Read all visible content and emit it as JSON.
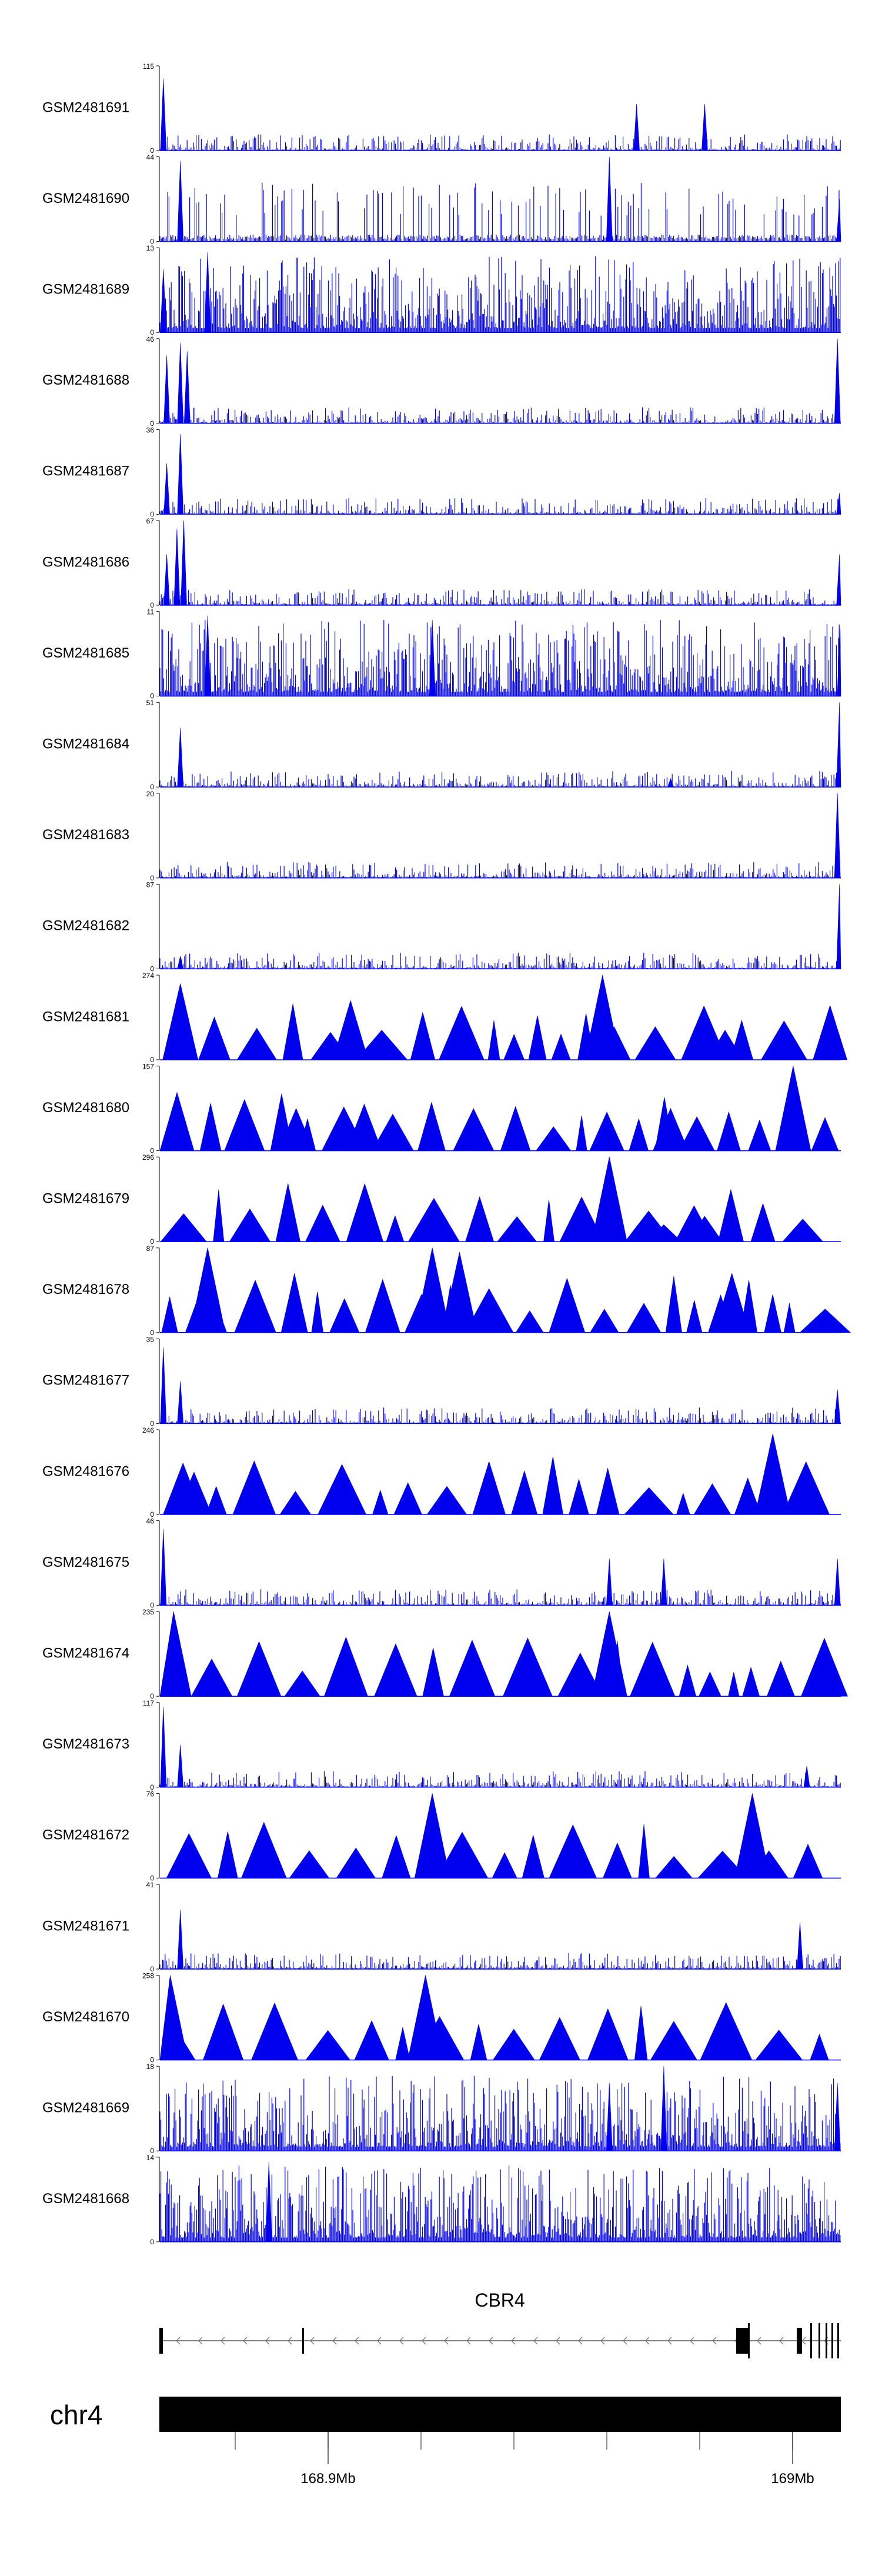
{
  "chart_data": {
    "type": "area",
    "title": "",
    "xlabel": "",
    "ylabel": "",
    "signal_color": "#0000ee",
    "tracks": [
      {
        "name": "GSM2481691",
        "ymax": "115",
        "profile": "sparse",
        "peaks": [
          [
            0.005,
            0.85
          ],
          [
            0.7,
            0.55
          ],
          [
            0.8,
            0.55
          ]
        ]
      },
      {
        "name": "GSM2481690",
        "ymax": "44",
        "profile": "comb",
        "peaks": [
          [
            0.03,
            0.95
          ],
          [
            0.66,
            1.0
          ],
          [
            0.998,
            0.5
          ]
        ]
      },
      {
        "name": "GSM2481689",
        "ymax": "13",
        "profile": "dense",
        "peaks": [
          [
            0.07,
            0.95
          ],
          [
            0.005,
            0.75
          ]
        ]
      },
      {
        "name": "GSM2481688",
        "ymax": "46",
        "profile": "edge",
        "peaks": [
          [
            0.01,
            0.8
          ],
          [
            0.03,
            0.95
          ],
          [
            0.04,
            0.85
          ],
          [
            0.995,
            1.0
          ]
        ]
      },
      {
        "name": "GSM2481687",
        "ymax": "36",
        "profile": "sparse",
        "peaks": [
          [
            0.01,
            0.6
          ],
          [
            0.03,
            0.95
          ],
          [
            0.998,
            0.25
          ]
        ]
      },
      {
        "name": "GSM2481686",
        "ymax": "67",
        "profile": "edge",
        "peaks": [
          [
            0.01,
            0.6
          ],
          [
            0.025,
            0.9
          ],
          [
            0.035,
            1.0
          ],
          [
            0.998,
            0.6
          ]
        ]
      },
      {
        "name": "GSM2481685",
        "ymax": "11",
        "profile": "dense",
        "peaks": [
          [
            0.07,
            0.95
          ],
          [
            0.4,
            0.9
          ],
          [
            0.999,
            0.8
          ]
        ]
      },
      {
        "name": "GSM2481684",
        "ymax": "51",
        "profile": "edge",
        "peaks": [
          [
            0.03,
            0.7
          ],
          [
            0.75,
            0.1
          ],
          [
            0.998,
            1.0
          ]
        ]
      },
      {
        "name": "GSM2481683",
        "ymax": "20",
        "profile": "sparse",
        "peaks": [
          [
            0.995,
            1.0
          ]
        ]
      },
      {
        "name": "GSM2481682",
        "ymax": "87",
        "profile": "edge",
        "peaks": [
          [
            0.03,
            0.15
          ],
          [
            0.998,
            1.0
          ]
        ]
      },
      {
        "name": "GSM2481681",
        "ymax": "274",
        "profile": "triangles",
        "peaks": [
          [
            0.03,
            0.9
          ],
          [
            0.28,
            0.7
          ],
          [
            0.65,
            1.0
          ],
          [
            0.83,
            0.35
          ]
        ]
      },
      {
        "name": "GSM2481680",
        "ymax": "157",
        "profile": "triangles",
        "peaks": [
          [
            0.2,
            0.5
          ],
          [
            0.3,
            0.55
          ],
          [
            0.75,
            0.5
          ],
          [
            0.93,
            1.0
          ]
        ]
      },
      {
        "name": "GSM2481679",
        "ymax": "296",
        "profile": "triangles",
        "peaks": [
          [
            0.66,
            1.0
          ],
          [
            0.74,
            0.2
          ],
          [
            0.8,
            0.3
          ]
        ]
      },
      {
        "name": "GSM2481678",
        "ymax": "87",
        "profile": "triangles",
        "peaks": [
          [
            0.07,
            1.0
          ],
          [
            0.4,
            1.0
          ],
          [
            0.44,
            0.95
          ],
          [
            0.84,
            0.7
          ]
        ]
      },
      {
        "name": "GSM2481677",
        "ymax": "35",
        "profile": "sparse",
        "peaks": [
          [
            0.005,
            0.9
          ],
          [
            0.03,
            0.5
          ],
          [
            0.995,
            0.4
          ]
        ]
      },
      {
        "name": "GSM2481676",
        "ymax": "246",
        "profile": "triangles",
        "peaks": [
          [
            0.05,
            0.5
          ],
          [
            0.9,
            0.95
          ]
        ]
      },
      {
        "name": "GSM2481675",
        "ymax": "46",
        "profile": "sparse",
        "peaks": [
          [
            0.005,
            0.9
          ],
          [
            0.66,
            0.55
          ],
          [
            0.74,
            0.55
          ],
          [
            0.995,
            0.55
          ]
        ]
      },
      {
        "name": "GSM2481674",
        "ymax": "235",
        "profile": "triangles",
        "peaks": [
          [
            0.02,
            1.0
          ],
          [
            0.66,
            1.0
          ]
        ]
      },
      {
        "name": "GSM2481673",
        "ymax": "117",
        "profile": "sparse",
        "peaks": [
          [
            0.005,
            0.95
          ],
          [
            0.03,
            0.5
          ],
          [
            0.95,
            0.25
          ]
        ]
      },
      {
        "name": "GSM2481672",
        "ymax": "76",
        "profile": "triangles",
        "peaks": [
          [
            0.4,
            1.0
          ],
          [
            0.87,
            1.0
          ]
        ]
      },
      {
        "name": "GSM2481671",
        "ymax": "41",
        "profile": "sparse",
        "peaks": [
          [
            0.03,
            0.7
          ],
          [
            0.94,
            0.55
          ]
        ]
      },
      {
        "name": "GSM2481670",
        "ymax": "258",
        "profile": "triangles",
        "peaks": [
          [
            0.015,
            1.0
          ],
          [
            0.39,
            1.0
          ]
        ]
      },
      {
        "name": "GSM2481669",
        "ymax": "18",
        "profile": "dense",
        "peaks": [
          [
            0.66,
            0.8
          ],
          [
            0.74,
            1.0
          ],
          [
            0.995,
            0.8
          ]
        ]
      },
      {
        "name": "GSM2481668",
        "ymax": "14",
        "profile": "dense",
        "peaks": [
          [
            0.16,
            0.95
          ]
        ]
      }
    ],
    "gene": {
      "name": "CBR4"
    },
    "chromosome": {
      "name": "chr4",
      "ticks": [
        {
          "label": "168.9Mb"
        },
        {
          "label": "169Mb"
        }
      ]
    }
  }
}
